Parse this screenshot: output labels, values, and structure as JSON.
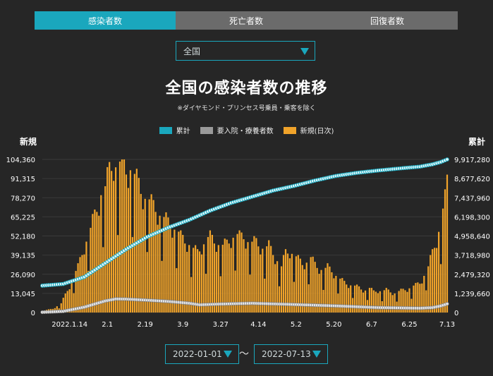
{
  "tabs": [
    {
      "label": "感染者数",
      "active": true
    },
    {
      "label": "死亡者数",
      "active": false
    },
    {
      "label": "回復者数",
      "active": false
    }
  ],
  "region_select": {
    "value": "全国"
  },
  "date_range": {
    "start": "2022-01-01",
    "end": "2022-07-13",
    "separator": "～"
  },
  "colors": {
    "accent": "#1aa7bd",
    "bar": "#f0a32a",
    "hospital": "#9a9a9a",
    "background": "#262626"
  },
  "chart_data": {
    "type": "bar",
    "title": "全国の感染者数の推移",
    "subtitle": "※ダイヤモンド・プリンセス号乗員・乗客を除く",
    "left_axis_label": "新規",
    "right_axis_label": "累計",
    "legend": [
      "累計",
      "要入院・療養者数",
      "新規(日次)"
    ],
    "left_ticks": [
      "0",
      "13,045",
      "26,090",
      "39,135",
      "52,180",
      "65,225",
      "78,270",
      "91,315",
      "104,360"
    ],
    "right_ticks": [
      "0",
      "1,239,660",
      "2,479,320",
      "3,718,980",
      "4,958,640",
      "6,198,300",
      "7,437,960",
      "8,677,620",
      "9,917,280"
    ],
    "ylim_left": [
      0,
      104360
    ],
    "ylim_right": [
      0,
      9917280
    ],
    "x_tick_labels": [
      "2022.1.14",
      "2.1",
      "2.19",
      "3.9",
      "3.27",
      "4.14",
      "5.2",
      "5.20",
      "6.7",
      "6.25",
      "7.13"
    ],
    "x_tick_day_index": [
      13,
      31,
      49,
      67,
      85,
      103,
      121,
      139,
      157,
      175,
      193
    ],
    "n_days": 194,
    "new_cases_keypoints": [
      [
        0,
        1200
      ],
      [
        5,
        2500
      ],
      [
        9,
        6000
      ],
      [
        13,
        18000
      ],
      [
        17,
        30000
      ],
      [
        20,
        45000
      ],
      [
        23,
        55000
      ],
      [
        26,
        70000
      ],
      [
        28,
        80000
      ],
      [
        30,
        82000
      ],
      [
        32,
        95000
      ],
      [
        34,
        102000
      ],
      [
        36,
        96000
      ],
      [
        38,
        100000
      ],
      [
        40,
        96000
      ],
      [
        42,
        97000
      ],
      [
        44,
        90000
      ],
      [
        46,
        85000
      ],
      [
        48,
        80000
      ],
      [
        50,
        75000
      ],
      [
        52,
        72000
      ],
      [
        54,
        70000
      ],
      [
        56,
        66000
      ],
      [
        58,
        62000
      ],
      [
        60,
        60000
      ],
      [
        62,
        58000
      ],
      [
        64,
        55000
      ],
      [
        66,
        50000
      ],
      [
        68,
        48000
      ],
      [
        70,
        46000
      ],
      [
        72,
        42000
      ],
      [
        74,
        40000
      ],
      [
        76,
        45000
      ],
      [
        78,
        48000
      ],
      [
        80,
        50000
      ],
      [
        82,
        48000
      ],
      [
        84,
        46000
      ],
      [
        86,
        44000
      ],
      [
        88,
        46000
      ],
      [
        90,
        50000
      ],
      [
        92,
        52000
      ],
      [
        94,
        50000
      ],
      [
        96,
        51000
      ],
      [
        98,
        48000
      ],
      [
        100,
        46000
      ],
      [
        102,
        47000
      ],
      [
        104,
        45000
      ],
      [
        106,
        42000
      ],
      [
        108,
        44000
      ],
      [
        110,
        40000
      ],
      [
        112,
        35000
      ],
      [
        114,
        30000
      ],
      [
        116,
        40000
      ],
      [
        118,
        42000
      ],
      [
        120,
        38000
      ],
      [
        122,
        35000
      ],
      [
        124,
        33000
      ],
      [
        126,
        34000
      ],
      [
        128,
        36000
      ],
      [
        130,
        32000
      ],
      [
        132,
        30000
      ],
      [
        134,
        28000
      ],
      [
        136,
        30000
      ],
      [
        138,
        28000
      ],
      [
        140,
        25000
      ],
      [
        142,
        22000
      ],
      [
        144,
        20000
      ],
      [
        146,
        19000
      ],
      [
        148,
        18000
      ],
      [
        150,
        17000
      ],
      [
        152,
        16000
      ],
      [
        154,
        15000
      ],
      [
        156,
        16000
      ],
      [
        158,
        14000
      ],
      [
        160,
        15000
      ],
      [
        162,
        14000
      ],
      [
        164,
        15000
      ],
      [
        166,
        14000
      ],
      [
        168,
        13000
      ],
      [
        170,
        14000
      ],
      [
        172,
        15000
      ],
      [
        174,
        16000
      ],
      [
        176,
        17000
      ],
      [
        178,
        18000
      ],
      [
        180,
        20000
      ],
      [
        182,
        25000
      ],
      [
        184,
        30000
      ],
      [
        186,
        40000
      ],
      [
        188,
        50000
      ],
      [
        190,
        60000
      ],
      [
        192,
        75000
      ],
      [
        193,
        94000
      ]
    ],
    "cumulative_keypoints": [
      [
        0,
        1740000
      ],
      [
        10,
        1850000
      ],
      [
        20,
        2300000
      ],
      [
        30,
        3200000
      ],
      [
        40,
        4100000
      ],
      [
        50,
        4900000
      ],
      [
        60,
        5500000
      ],
      [
        70,
        6000000
      ],
      [
        80,
        6600000
      ],
      [
        90,
        7100000
      ],
      [
        100,
        7500000
      ],
      [
        110,
        7900000
      ],
      [
        120,
        8200000
      ],
      [
        130,
        8550000
      ],
      [
        140,
        8850000
      ],
      [
        150,
        9050000
      ],
      [
        160,
        9200000
      ],
      [
        170,
        9330000
      ],
      [
        180,
        9450000
      ],
      [
        186,
        9600000
      ],
      [
        190,
        9750000
      ],
      [
        193,
        9917280
      ]
    ],
    "hospitalized_keypoints": [
      [
        0,
        20000
      ],
      [
        10,
        80000
      ],
      [
        20,
        350000
      ],
      [
        30,
        750000
      ],
      [
        35,
        880000
      ],
      [
        40,
        870000
      ],
      [
        50,
        800000
      ],
      [
        60,
        720000
      ],
      [
        70,
        600000
      ],
      [
        75,
        500000
      ],
      [
        85,
        550000
      ],
      [
        100,
        600000
      ],
      [
        120,
        520000
      ],
      [
        140,
        430000
      ],
      [
        160,
        320000
      ],
      [
        180,
        280000
      ],
      [
        186,
        320000
      ],
      [
        190,
        430000
      ],
      [
        193,
        560000
      ]
    ]
  }
}
